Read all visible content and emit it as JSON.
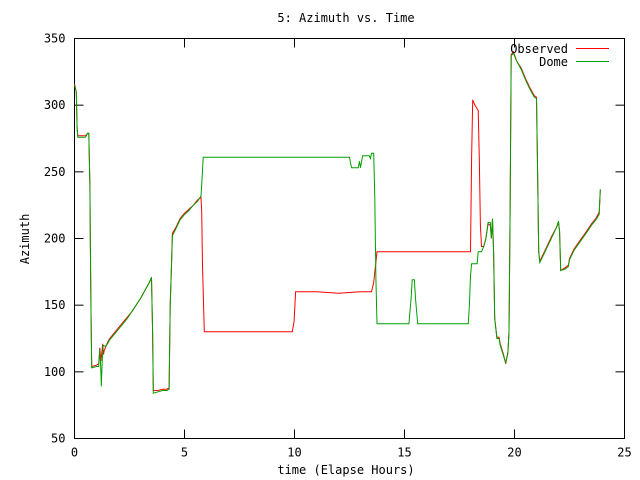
{
  "chart_data": {
    "type": "line",
    "title": "5: Azimuth vs. Time",
    "xlabel": "time (Elapse Hours)",
    "ylabel": "Azimuth",
    "xlim": [
      0,
      25
    ],
    "ylim": [
      50,
      350
    ],
    "xticks": [
      0,
      5,
      10,
      15,
      20,
      25
    ],
    "yticks": [
      50,
      100,
      150,
      200,
      250,
      300,
      350
    ],
    "grid": false,
    "legend_position": "top-right",
    "series": [
      {
        "name": "Observed",
        "color": "#ff0000",
        "points": [
          [
            0.0,
            316
          ],
          [
            0.08,
            310
          ],
          [
            0.12,
            283
          ],
          [
            0.15,
            277
          ],
          [
            0.5,
            277
          ],
          [
            0.6,
            279
          ],
          [
            0.65,
            279
          ],
          [
            0.7,
            240
          ],
          [
            0.72,
            200
          ],
          [
            0.75,
            145
          ],
          [
            0.78,
            104
          ],
          [
            1.0,
            105
          ],
          [
            1.1,
            106
          ],
          [
            1.15,
            118
          ],
          [
            1.2,
            108
          ],
          [
            1.28,
            121
          ],
          [
            1.32,
            113
          ],
          [
            1.35,
            116
          ],
          [
            1.4,
            118
          ],
          [
            1.5,
            122
          ],
          [
            1.6,
            125
          ],
          [
            1.8,
            129
          ],
          [
            2.0,
            133
          ],
          [
            2.2,
            137
          ],
          [
            2.4,
            141
          ],
          [
            2.6,
            145
          ],
          [
            2.8,
            150
          ],
          [
            3.0,
            155
          ],
          [
            3.2,
            161
          ],
          [
            3.4,
            167
          ],
          [
            3.5,
            170
          ],
          [
            3.55,
            130
          ],
          [
            3.58,
            86
          ],
          [
            3.8,
            86
          ],
          [
            4.0,
            87
          ],
          [
            4.2,
            87
          ],
          [
            4.3,
            88
          ],
          [
            4.32,
            110
          ],
          [
            4.35,
            150
          ],
          [
            4.38,
            166
          ],
          [
            4.45,
            204
          ],
          [
            4.6,
            208
          ],
          [
            4.8,
            215
          ],
          [
            5.0,
            219
          ],
          [
            5.2,
            222
          ],
          [
            5.4,
            225
          ],
          [
            5.6,
            229
          ],
          [
            5.75,
            231
          ],
          [
            5.78,
            220
          ],
          [
            5.82,
            180
          ],
          [
            5.9,
            130
          ],
          [
            6.5,
            130
          ],
          [
            8.0,
            130
          ],
          [
            9.9,
            130
          ],
          [
            9.98,
            138
          ],
          [
            10.05,
            160
          ],
          [
            11.0,
            160
          ],
          [
            12.0,
            159
          ],
          [
            13.0,
            160
          ],
          [
            13.5,
            160
          ],
          [
            13.6,
            167
          ],
          [
            13.65,
            175
          ],
          [
            13.7,
            182
          ],
          [
            13.75,
            190
          ],
          [
            15.0,
            190
          ],
          [
            16.5,
            190
          ],
          [
            17.5,
            190
          ],
          [
            18.0,
            190
          ],
          [
            18.05,
            260
          ],
          [
            18.1,
            304
          ],
          [
            18.2,
            300
          ],
          [
            18.35,
            296
          ],
          [
            18.4,
            260
          ],
          [
            18.45,
            210
          ],
          [
            18.5,
            194
          ],
          [
            18.6,
            194
          ],
          [
            18.7,
            200
          ],
          [
            18.8,
            211
          ],
          [
            18.9,
            210
          ],
          [
            18.95,
            200
          ],
          [
            19.0,
            214
          ],
          [
            19.05,
            190
          ],
          [
            19.1,
            140
          ],
          [
            19.2,
            126
          ],
          [
            19.3,
            126
          ],
          [
            19.35,
            121
          ],
          [
            19.5,
            113
          ],
          [
            19.6,
            106
          ],
          [
            19.7,
            115
          ],
          [
            19.75,
            130
          ],
          [
            19.8,
            220
          ],
          [
            19.85,
            338
          ],
          [
            19.95,
            340
          ],
          [
            20.1,
            333
          ],
          [
            20.3,
            328
          ],
          [
            20.5,
            320
          ],
          [
            20.7,
            313
          ],
          [
            20.9,
            307
          ],
          [
            21.0,
            306
          ],
          [
            21.05,
            250
          ],
          [
            21.1,
            190
          ],
          [
            21.15,
            183
          ],
          [
            21.3,
            188
          ],
          [
            21.5,
            195
          ],
          [
            21.7,
            202
          ],
          [
            21.9,
            208
          ],
          [
            22.0,
            212
          ],
          [
            22.05,
            205
          ],
          [
            22.1,
            176
          ],
          [
            22.3,
            178
          ],
          [
            22.45,
            180
          ],
          [
            22.5,
            185
          ],
          [
            22.7,
            192
          ],
          [
            23.0,
            199
          ],
          [
            23.3,
            206
          ],
          [
            23.5,
            211
          ],
          [
            23.7,
            215
          ],
          [
            23.85,
            220
          ],
          [
            23.9,
            236
          ]
        ]
      },
      {
        "name": "Dome",
        "color": "#00a000",
        "points": [
          [
            0.0,
            315
          ],
          [
            0.08,
            310
          ],
          [
            0.12,
            283
          ],
          [
            0.15,
            276
          ],
          [
            0.5,
            276
          ],
          [
            0.6,
            279
          ],
          [
            0.65,
            279
          ],
          [
            0.7,
            240
          ],
          [
            0.72,
            200
          ],
          [
            0.75,
            145
          ],
          [
            0.78,
            103
          ],
          [
            1.0,
            104
          ],
          [
            1.1,
            104
          ],
          [
            1.15,
            117
          ],
          [
            1.2,
            100
          ],
          [
            1.22,
            89
          ],
          [
            1.25,
            104
          ],
          [
            1.3,
            120
          ],
          [
            1.4,
            119
          ],
          [
            1.5,
            121
          ],
          [
            1.6,
            124
          ],
          [
            1.8,
            128
          ],
          [
            2.0,
            132
          ],
          [
            2.2,
            136
          ],
          [
            2.4,
            140
          ],
          [
            2.6,
            145
          ],
          [
            2.8,
            150
          ],
          [
            3.0,
            155
          ],
          [
            3.2,
            161
          ],
          [
            3.4,
            167
          ],
          [
            3.5,
            171
          ],
          [
            3.55,
            130
          ],
          [
            3.58,
            84
          ],
          [
            3.8,
            85
          ],
          [
            4.0,
            86
          ],
          [
            4.2,
            86
          ],
          [
            4.3,
            87
          ],
          [
            4.32,
            110
          ],
          [
            4.35,
            150
          ],
          [
            4.38,
            165
          ],
          [
            4.45,
            202
          ],
          [
            4.6,
            207
          ],
          [
            4.8,
            214
          ],
          [
            5.0,
            218
          ],
          [
            5.2,
            221
          ],
          [
            5.4,
            225
          ],
          [
            5.6,
            228
          ],
          [
            5.75,
            232
          ],
          [
            5.78,
            240
          ],
          [
            5.85,
            261
          ],
          [
            6.5,
            261
          ],
          [
            8.0,
            261
          ],
          [
            10.0,
            261
          ],
          [
            11.5,
            261
          ],
          [
            12.5,
            261
          ],
          [
            12.55,
            256
          ],
          [
            12.6,
            253
          ],
          [
            12.9,
            253
          ],
          [
            12.95,
            258
          ],
          [
            13.0,
            253
          ],
          [
            13.05,
            258
          ],
          [
            13.1,
            262
          ],
          [
            13.4,
            262
          ],
          [
            13.45,
            260
          ],
          [
            13.5,
            264
          ],
          [
            13.6,
            264
          ],
          [
            13.65,
            230
          ],
          [
            13.7,
            170
          ],
          [
            13.75,
            136
          ],
          [
            14.0,
            136
          ],
          [
            15.0,
            136
          ],
          [
            15.2,
            136
          ],
          [
            15.3,
            155
          ],
          [
            15.35,
            169
          ],
          [
            15.45,
            169
          ],
          [
            15.5,
            155
          ],
          [
            15.6,
            136
          ],
          [
            16.5,
            136
          ],
          [
            17.5,
            136
          ],
          [
            17.9,
            136
          ],
          [
            17.95,
            150
          ],
          [
            18.0,
            172
          ],
          [
            18.05,
            181
          ],
          [
            18.3,
            181
          ],
          [
            18.35,
            190
          ],
          [
            18.5,
            190
          ],
          [
            18.6,
            194
          ],
          [
            18.7,
            200
          ],
          [
            18.8,
            212
          ],
          [
            18.9,
            212
          ],
          [
            18.95,
            200
          ],
          [
            19.0,
            215
          ],
          [
            19.05,
            190
          ],
          [
            19.1,
            140
          ],
          [
            19.2,
            125
          ],
          [
            19.3,
            125
          ],
          [
            19.35,
            120
          ],
          [
            19.5,
            112
          ],
          [
            19.6,
            107
          ],
          [
            19.7,
            114
          ],
          [
            19.75,
            130
          ],
          [
            19.8,
            220
          ],
          [
            19.85,
            337
          ],
          [
            19.95,
            339
          ],
          [
            20.1,
            333
          ],
          [
            20.3,
            327
          ],
          [
            20.5,
            319
          ],
          [
            20.7,
            312
          ],
          [
            20.9,
            306
          ],
          [
            21.0,
            305
          ],
          [
            21.05,
            250
          ],
          [
            21.1,
            190
          ],
          [
            21.15,
            182
          ],
          [
            21.3,
            187
          ],
          [
            21.5,
            194
          ],
          [
            21.7,
            201
          ],
          [
            21.9,
            208
          ],
          [
            22.0,
            213
          ],
          [
            22.05,
            205
          ],
          [
            22.1,
            176
          ],
          [
            22.3,
            177
          ],
          [
            22.45,
            179
          ],
          [
            22.5,
            184
          ],
          [
            22.7,
            191
          ],
          [
            23.0,
            198
          ],
          [
            23.3,
            205
          ],
          [
            23.5,
            210
          ],
          [
            23.7,
            214
          ],
          [
            23.85,
            218
          ],
          [
            23.9,
            237
          ]
        ]
      }
    ]
  }
}
